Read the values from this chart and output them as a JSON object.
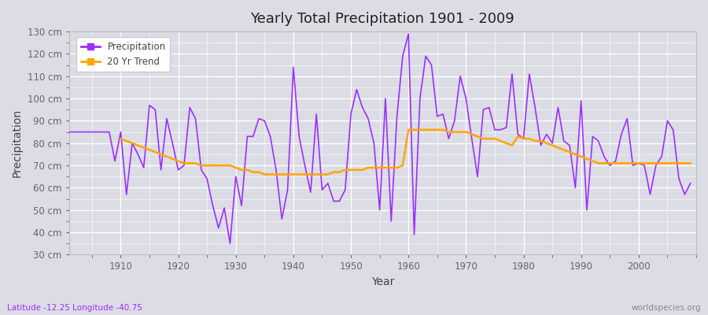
{
  "title": "Yearly Total Precipitation 1901 - 2009",
  "xlabel": "Year",
  "ylabel": "Precipitation",
  "subtitle": "Latitude -12.25 Longitude -40.75",
  "watermark": "worldspecies.org",
  "precip_color": "#9B30FF",
  "trend_color": "#FFA500",
  "bg_color": "#DCDCE4",
  "ylim": [
    30,
    130
  ],
  "ytick_labels": [
    "30 cm",
    "40 cm",
    "50 cm",
    "60 cm",
    "70 cm",
    "80 cm",
    "90 cm",
    "100 cm",
    "110 cm",
    "120 cm",
    "130 cm"
  ],
  "ytick_values": [
    30,
    40,
    50,
    60,
    70,
    80,
    90,
    100,
    110,
    120,
    130
  ],
  "years": [
    1901,
    1902,
    1903,
    1904,
    1905,
    1906,
    1907,
    1908,
    1909,
    1910,
    1911,
    1912,
    1913,
    1914,
    1915,
    1916,
    1917,
    1918,
    1919,
    1920,
    1921,
    1922,
    1923,
    1924,
    1925,
    1926,
    1927,
    1928,
    1929,
    1930,
    1931,
    1932,
    1933,
    1934,
    1935,
    1936,
    1937,
    1938,
    1939,
    1940,
    1941,
    1942,
    1943,
    1944,
    1945,
    1946,
    1947,
    1948,
    1949,
    1950,
    1951,
    1952,
    1953,
    1954,
    1955,
    1956,
    1957,
    1958,
    1959,
    1960,
    1961,
    1962,
    1963,
    1964,
    1965,
    1966,
    1967,
    1968,
    1969,
    1970,
    1971,
    1972,
    1973,
    1974,
    1975,
    1976,
    1977,
    1978,
    1979,
    1980,
    1981,
    1982,
    1983,
    1984,
    1985,
    1986,
    1987,
    1988,
    1989,
    1990,
    1991,
    1992,
    1993,
    1994,
    1995,
    1996,
    1997,
    1998,
    1999,
    2000,
    2001,
    2002,
    2003,
    2004,
    2005,
    2006,
    2007,
    2008,
    2009
  ],
  "precip": [
    85,
    85,
    85,
    85,
    85,
    85,
    85,
    85,
    72,
    85,
    57,
    80,
    75,
    69,
    97,
    95,
    68,
    91,
    80,
    68,
    70,
    96,
    91,
    68,
    64,
    52,
    42,
    51,
    35,
    65,
    52,
    83,
    83,
    91,
    90,
    83,
    68,
    46,
    59,
    114,
    83,
    70,
    58,
    93,
    59,
    62,
    54,
    54,
    59,
    93,
    104,
    96,
    91,
    80,
    50,
    100,
    45,
    92,
    119,
    129,
    39,
    100,
    119,
    115,
    92,
    93,
    82,
    90,
    110,
    100,
    82,
    65,
    95,
    96,
    86,
    86,
    87,
    111,
    84,
    82,
    111,
    96,
    79,
    84,
    80,
    96,
    81,
    79,
    60,
    99,
    50,
    83,
    81,
    74,
    70,
    72,
    84,
    91,
    70,
    71,
    70,
    57,
    70,
    74,
    90,
    86,
    64,
    57,
    62
  ],
  "trend_years": [
    1910,
    1911,
    1912,
    1913,
    1914,
    1915,
    1916,
    1917,
    1918,
    1919,
    1920,
    1921,
    1922,
    1923,
    1924,
    1925,
    1926,
    1927,
    1928,
    1929,
    1930,
    1931,
    1932,
    1933,
    1934,
    1935,
    1936,
    1937,
    1938,
    1939,
    1940,
    1941,
    1942,
    1943,
    1944,
    1945,
    1946,
    1947,
    1948,
    1949,
    1950,
    1951,
    1952,
    1953,
    1954,
    1955,
    1956,
    1957,
    1958,
    1959,
    1960,
    1961,
    1962,
    1963,
    1964,
    1965,
    1966,
    1967,
    1968,
    1969,
    1970,
    1971,
    1972,
    1973,
    1974,
    1975,
    1976,
    1977,
    1978,
    1979,
    1980,
    1981,
    1982,
    1983,
    1984,
    1985,
    1986,
    1987,
    1988,
    1989,
    1990,
    1991,
    1992,
    1993,
    1994,
    1995,
    1996,
    1997,
    1998,
    1999,
    2000,
    2001,
    2002,
    2003,
    2004,
    2005,
    2006,
    2007,
    2008,
    2009
  ],
  "trend": [
    82,
    81,
    80,
    79,
    78,
    77,
    76,
    75,
    74,
    73,
    72,
    71,
    71,
    71,
    70,
    70,
    70,
    70,
    70,
    70,
    69,
    68,
    68,
    67,
    67,
    66,
    66,
    66,
    66,
    66,
    66,
    66,
    66,
    66,
    66,
    66,
    66,
    67,
    67,
    68,
    68,
    68,
    68,
    69,
    69,
    69,
    69,
    69,
    69,
    70,
    86,
    86,
    86,
    86,
    86,
    86,
    86,
    85,
    85,
    85,
    85,
    84,
    83,
    82,
    82,
    82,
    81,
    80,
    79,
    83,
    82,
    82,
    81,
    81,
    80,
    79,
    78,
    77,
    76,
    75,
    74,
    73,
    72,
    71,
    71,
    71,
    71,
    71,
    71,
    71,
    71,
    71,
    71,
    71,
    71,
    71,
    71,
    71,
    71,
    71
  ]
}
